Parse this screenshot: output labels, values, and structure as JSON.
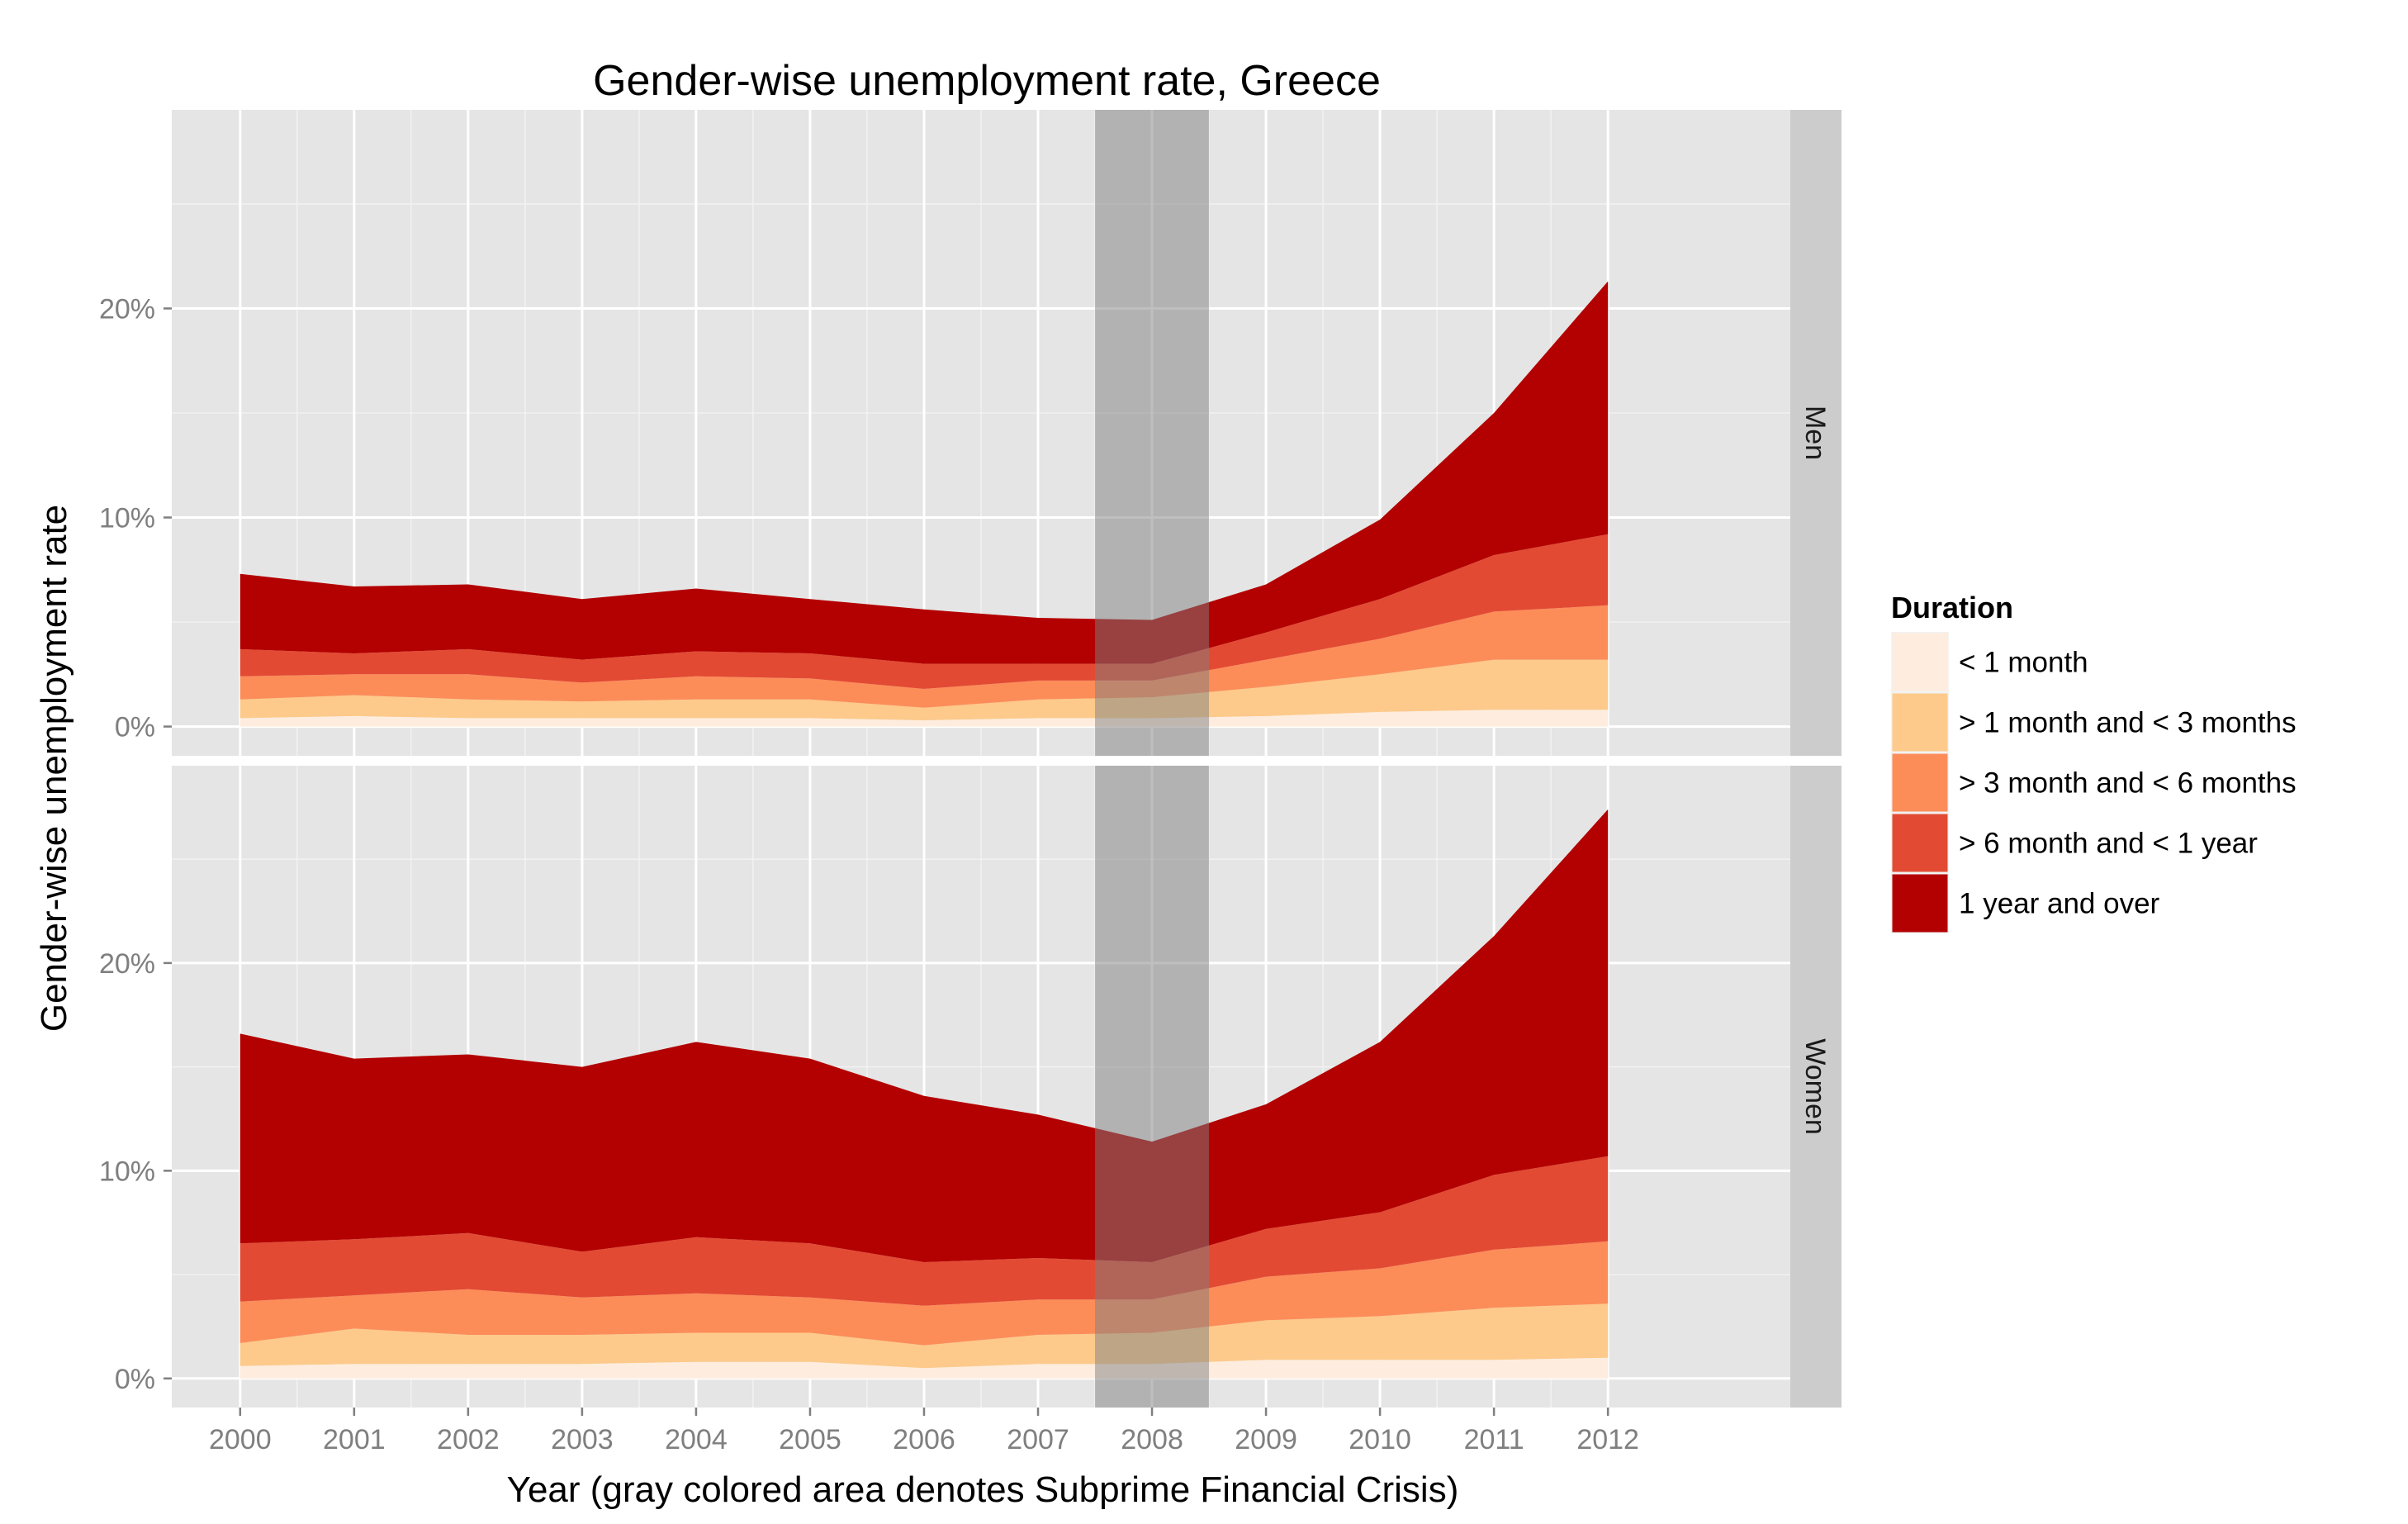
{
  "chart_data": {
    "type": "area",
    "stacked": true,
    "title": "Gender-wise unemployment rate, Greece",
    "xlabel": "Year (gray colored area denotes Subprime Financial Crisis)",
    "ylabel": "Gender-wise unemployment rate",
    "x": [
      2000,
      2001,
      2002,
      2003,
      2004,
      2005,
      2006,
      2007,
      2008,
      2009,
      2010,
      2011,
      2012
    ],
    "x_tick_labels": [
      "2000",
      "2001",
      "2002",
      "2003",
      "2004",
      "2005",
      "2006",
      "2007",
      "2008",
      "2009",
      "2010",
      "2011",
      "2012"
    ],
    "xlim": [
      1999.4,
      2013.6
    ],
    "ylim": [
      -1.4,
      29.5
    ],
    "y_ticks": [
      0,
      10,
      20
    ],
    "y_tick_labels": [
      "0%",
      "10%",
      "20%"
    ],
    "grid": true,
    "legend_position": "right",
    "highlight_band": {
      "from": 2007.5,
      "to": 2008.5,
      "color": "#7f7f7f",
      "opacity": 0.5
    },
    "legend": {
      "title": "Duration",
      "entries": [
        "< 1 month",
        "> 1 month and < 3 months",
        "> 3 month and < 6 months",
        "> 6 month and < 1 year",
        "1 year and over"
      ],
      "colors": [
        "#feedde",
        "#fdca8b",
        "#fc8d59",
        "#e34a33",
        "#b30000"
      ]
    },
    "panels": [
      {
        "strip": "Men",
        "series": [
          {
            "name": "< 1 month",
            "values": [
              0.4,
              0.5,
              0.4,
              0.4,
              0.4,
              0.4,
              0.3,
              0.4,
              0.4,
              0.5,
              0.7,
              0.8,
              0.8
            ]
          },
          {
            "name": "> 1 month and < 3 months",
            "values": [
              0.9,
              1.0,
              0.9,
              0.8,
              0.9,
              0.9,
              0.6,
              0.9,
              1.0,
              1.4,
              1.8,
              2.4,
              2.4
            ]
          },
          {
            "name": "> 3 month and < 6 months",
            "values": [
              1.1,
              1.0,
              1.2,
              0.9,
              1.1,
              1.0,
              0.9,
              0.9,
              0.8,
              1.3,
              1.7,
              2.3,
              2.6
            ]
          },
          {
            "name": "> 6 month and < 1 year",
            "values": [
              1.3,
              1.0,
              1.2,
              1.1,
              1.2,
              1.2,
              1.2,
              0.8,
              0.8,
              1.3,
              1.9,
              2.7,
              3.4
            ]
          },
          {
            "name": "1 year and over",
            "values": [
              3.6,
              3.2,
              3.1,
              2.9,
              3.0,
              2.6,
              2.6,
              2.2,
              2.1,
              2.3,
              3.8,
              6.8,
              12.1
            ]
          }
        ]
      },
      {
        "strip": "Women",
        "series": [
          {
            "name": "< 1 month",
            "values": [
              0.6,
              0.7,
              0.7,
              0.7,
              0.8,
              0.8,
              0.5,
              0.7,
              0.7,
              0.9,
              0.9,
              0.9,
              1.0
            ]
          },
          {
            "name": "> 1 month and < 3 months",
            "values": [
              1.1,
              1.7,
              1.4,
              1.4,
              1.4,
              1.4,
              1.1,
              1.4,
              1.5,
              1.9,
              2.1,
              2.5,
              2.6
            ]
          },
          {
            "name": "> 3 month and < 6 months",
            "values": [
              2.0,
              1.6,
              2.2,
              1.8,
              1.9,
              1.7,
              1.9,
              1.7,
              1.6,
              2.1,
              2.3,
              2.8,
              3.0
            ]
          },
          {
            "name": "> 6 month and < 1 year",
            "values": [
              2.8,
              2.7,
              2.7,
              2.2,
              2.7,
              2.6,
              2.1,
              2.0,
              1.8,
              2.3,
              2.7,
              3.6,
              4.1
            ]
          },
          {
            "name": "1 year and over",
            "values": [
              10.1,
              8.7,
              8.6,
              8.9,
              9.4,
              8.9,
              8.0,
              6.9,
              5.8,
              6.0,
              8.2,
              11.5,
              16.7
            ]
          }
        ]
      }
    ]
  }
}
